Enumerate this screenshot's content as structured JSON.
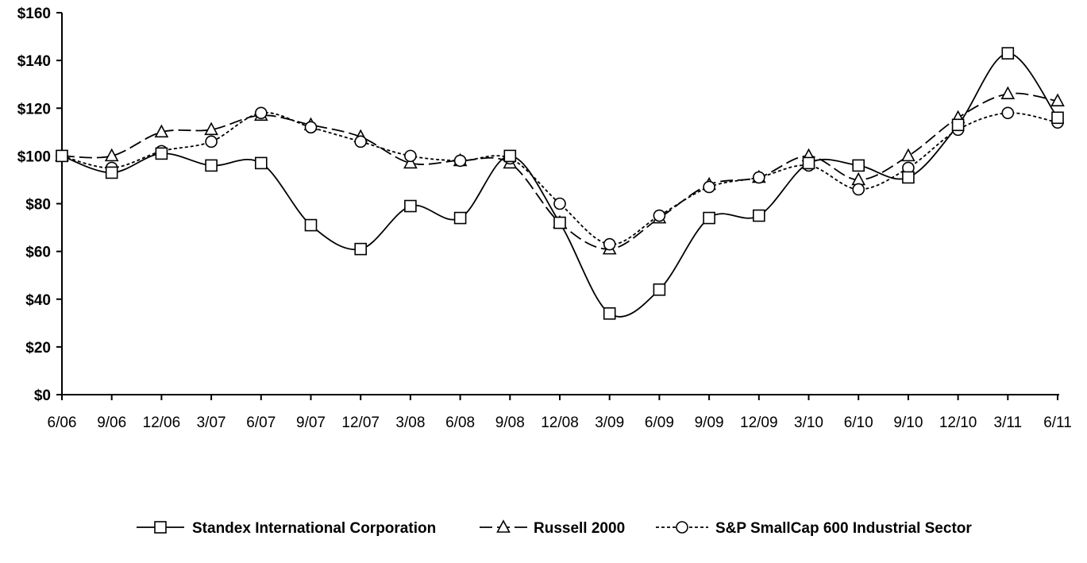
{
  "chart_data": {
    "type": "line",
    "title": "",
    "xlabel": "",
    "ylabel": "",
    "categories": [
      "6/06",
      "9/06",
      "12/06",
      "3/07",
      "6/07",
      "9/07",
      "12/07",
      "3/08",
      "6/08",
      "9/08",
      "12/08",
      "3/09",
      "6/09",
      "9/09",
      "12/09",
      "3/10",
      "6/10",
      "9/10",
      "12/10",
      "3/11",
      "6/11"
    ],
    "ylim": [
      0,
      160
    ],
    "yticks": [
      0,
      20,
      40,
      60,
      80,
      100,
      120,
      140,
      160
    ],
    "ytick_labels": [
      "$0",
      "$20",
      "$40",
      "$60",
      "$80",
      "$100",
      "$120",
      "$140",
      "$160"
    ],
    "grid": false,
    "legend_position": "bottom",
    "series": [
      {
        "name": "Standex International Corporation",
        "marker": "square",
        "dash": "solid",
        "color": "#000000",
        "values": [
          100,
          93,
          101,
          96,
          97,
          71,
          61,
          79,
          74,
          100,
          72,
          34,
          44,
          74,
          75,
          97,
          96,
          91,
          113,
          143,
          116
        ]
      },
      {
        "name": "Russell 2000",
        "marker": "triangle",
        "dash": "dashed",
        "color": "#000000",
        "values": [
          100,
          100,
          110,
          111,
          117,
          113,
          108,
          97,
          98,
          97,
          72,
          61,
          74,
          88,
          91,
          100,
          90,
          100,
          116,
          126,
          123
        ]
      },
      {
        "name": "S&P SmallCap 600 Industrial Sector",
        "marker": "circle",
        "dash": "dotted",
        "color": "#000000",
        "values": [
          100,
          95,
          102,
          106,
          118,
          112,
          106,
          100,
          98,
          99,
          80,
          63,
          75,
          87,
          91,
          96,
          86,
          95,
          111,
          118,
          114
        ]
      }
    ]
  }
}
